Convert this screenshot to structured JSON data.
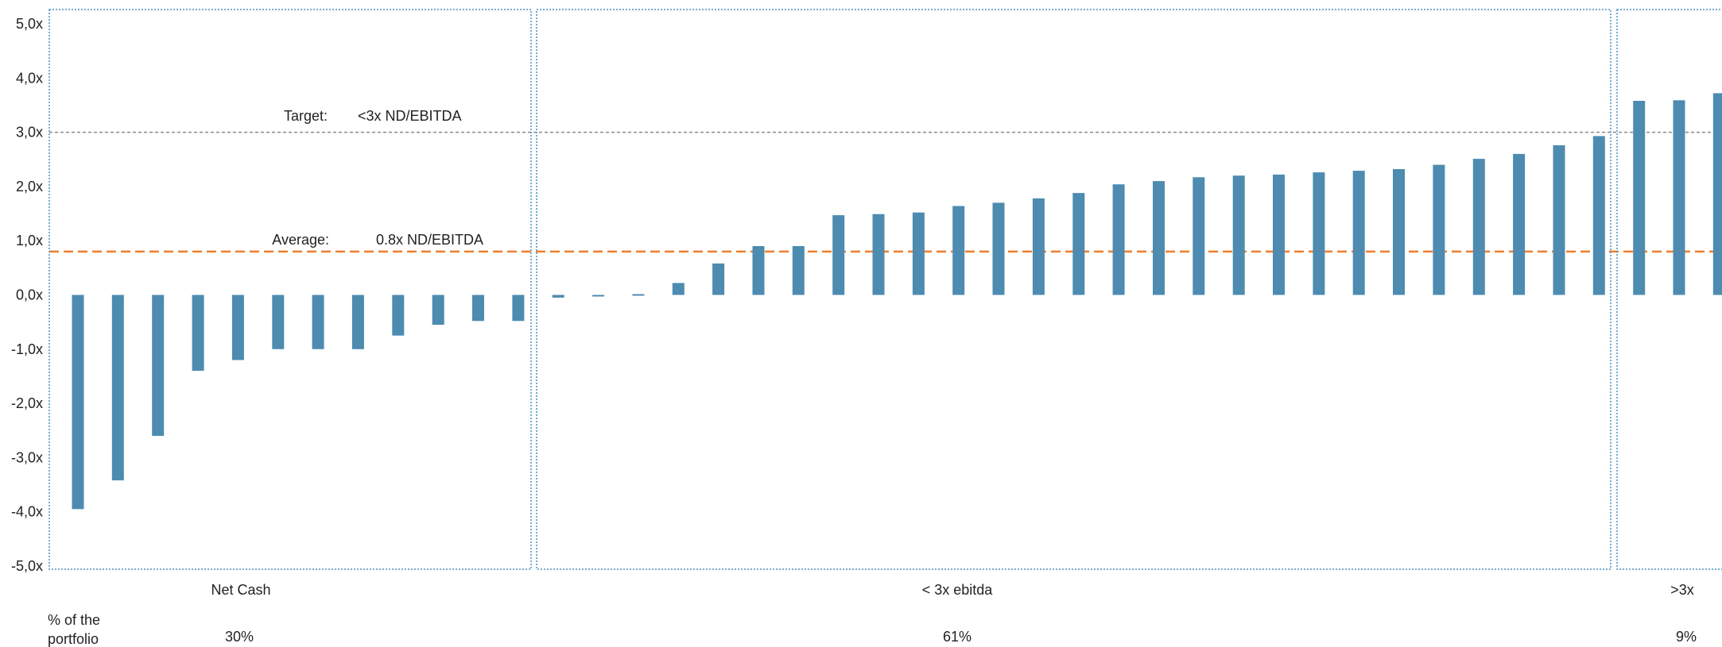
{
  "chart_data": {
    "type": "bar",
    "ylim": [
      -5,
      5
    ],
    "yticks": [
      "5,0x",
      "4,0x",
      "3,0x",
      "2,0x",
      "1,0x",
      "0,0x",
      "-1,0x",
      "-2,0x",
      "-3,0x",
      "-4,0x",
      "-5,0x"
    ],
    "ytick_values": [
      5,
      4,
      3,
      2,
      1,
      0,
      -1,
      -2,
      -3,
      -4,
      -5
    ],
    "grid": false,
    "colors": {
      "bar": "#4d8bb0",
      "target_line": "#8a8a8a",
      "average_line": "#f07f2b",
      "group_box": "#4a90c0"
    },
    "values": [
      -3.95,
      -3.42,
      -2.6,
      -1.4,
      -1.2,
      -1.0,
      -1.0,
      -1.0,
      -0.75,
      -0.55,
      -0.48,
      -0.48,
      -0.05,
      -0.03,
      -0.02,
      0.22,
      0.58,
      0.9,
      0.9,
      1.47,
      1.49,
      1.52,
      1.64,
      1.7,
      1.78,
      1.88,
      2.04,
      2.1,
      2.17,
      2.2,
      2.22,
      2.26,
      2.29,
      2.32,
      2.4,
      2.51,
      2.6,
      2.76,
      2.93,
      3.58,
      3.59,
      3.72
    ],
    "reference_lines": [
      {
        "y": 3.0,
        "label": "Target:",
        "value_label": "<3x ND/EBITDA"
      },
      {
        "y": 0.8,
        "label": "Average:",
        "value_label": "0.8x ND/EBITDA"
      }
    ],
    "groups": [
      {
        "label": "Net  Cash",
        "share": "30%"
      },
      {
        "label": "< 3x  ebitda",
        "share": "61%"
      },
      {
        "label": ">3x",
        "share": "9%"
      }
    ],
    "share_row_label_line1": "% of the",
    "share_row_label_line2": "portfolio"
  }
}
